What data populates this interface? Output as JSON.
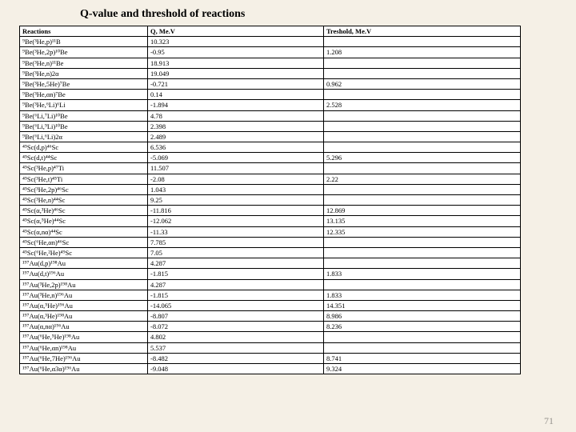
{
  "title_text": "Q-value and threshold of reactions",
  "page_number": "71",
  "columns": [
    "Reactions",
    "Q, Me.V",
    "Treshold, Me.V"
  ],
  "rows": [
    [
      "⁹Be(³He,p)¹¹B",
      "10.323",
      ""
    ],
    [
      "⁹Be(³He,2p)¹⁰Be",
      "-0.95",
      "1.208"
    ],
    [
      "⁹Be(³He,n)¹¹Be",
      "18.913",
      ""
    ],
    [
      "⁹Be(³He,n)2α",
      "19.049",
      ""
    ],
    [
      "⁹Be(³He,5He)⁷Be",
      "-0.721",
      "0.962"
    ],
    [
      "⁹Be(³He,αn)⁷Be",
      "0.14",
      ""
    ],
    [
      "⁹Be(³He,⁶Li)⁶Li",
      "-1.894",
      "2.528"
    ],
    [
      "⁹Be(⁶Li,⁷Li)¹⁰Be",
      "4.78",
      ""
    ],
    [
      "⁹Be(⁶Li,⁹Li)¹⁰Be",
      "2.398",
      ""
    ],
    [
      "⁹Be(⁶Li,⁶Li)2α",
      "2.489",
      ""
    ],
    [
      "⁴⁵Sc(d,p)⁴⁶Sc",
      "6.536",
      ""
    ],
    [
      "⁴⁵Sc(d,t)⁴⁴Sc",
      "-5.069",
      "5.296"
    ],
    [
      "⁴⁵Sc(³He,p)⁴⁷Ti",
      "11.507",
      ""
    ],
    [
      "⁴⁵Sc(³He,t)⁴⁵Ti",
      "-2.08",
      "2.22"
    ],
    [
      "⁴⁵Sc(³He,2p)⁴⁶Sc",
      "1.043",
      ""
    ],
    [
      "⁴⁵Sc(³He,n)⁴⁴Sc",
      "9.25",
      ""
    ],
    [
      "⁴⁵Sc(α,³He)⁴⁶Sc",
      "-11.816",
      "12.869"
    ],
    [
      "⁴⁵Sc(α,⁵He)⁴⁴Sc",
      "-12.062",
      "13.135"
    ],
    [
      "⁴⁵Sc(α,nα)⁴⁴Sc",
      "-11.33",
      "12.335"
    ],
    [
      "⁴⁵Sc(⁶He,αn)⁴⁶Sc",
      "7.785",
      ""
    ],
    [
      "⁴⁵Sc(⁶He,²He)⁴⁹Sc",
      "7.05",
      ""
    ],
    [
      "¹⁹⁷Au(d,p)¹⁹⁸Au",
      "4.287",
      ""
    ],
    [
      "¹⁹⁷Au(d,t)¹⁹⁶Au",
      "-1.815",
      "1.833"
    ],
    [
      "¹⁹⁷Au(³He,2p)¹⁹⁸Au",
      "4.287",
      ""
    ],
    [
      "¹⁹⁷Au(³He,n)¹⁹⁶Au",
      "-1.815",
      "1.833"
    ],
    [
      "¹⁹⁷Au(α,⁵He)¹⁹⁶Au",
      "-14.065",
      "14.351"
    ],
    [
      "¹⁹⁷Au(α,³He)¹⁹⁸Au",
      "-8.807",
      "8.986"
    ],
    [
      "¹⁹⁷Au(α,nα)¹⁹⁶Au",
      "-8.072",
      "8.236"
    ],
    [
      "¹⁹⁷Au(⁶He,⁵He)¹⁹⁸Au",
      "4.802",
      ""
    ],
    [
      "¹⁹⁷Au(⁶He,αn)¹⁹⁸Au",
      "5.537",
      ""
    ],
    [
      "¹⁹⁷Au(⁶He,7He)¹⁹⁶Au",
      "-8.482",
      "8.741"
    ],
    [
      "¹⁹⁷Au(⁶He,α3α)¹⁹⁶Au",
      "-9.048",
      "9.324"
    ]
  ]
}
